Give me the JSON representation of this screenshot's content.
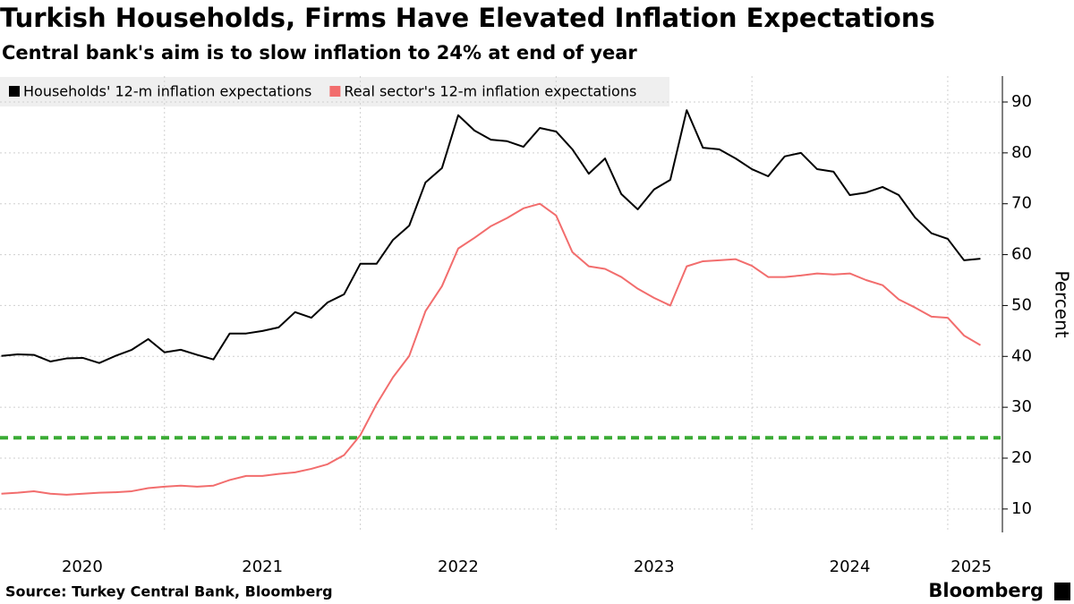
{
  "chart_data": {
    "type": "line",
    "title": "Turkish Households, Firms Have Elevated Inflation Expectations",
    "subtitle": "Central bank's aim is to slow inflation to 24% at end of year",
    "y_label": "Percent",
    "source": "Source: Turkey Central Bank, Bloomberg",
    "logo": "Bloomberg",
    "x": [
      2020.167,
      2020.25,
      2020.333,
      2020.417,
      2020.5,
      2020.583,
      2020.667,
      2020.75,
      2020.833,
      2020.917,
      2021.0,
      2021.083,
      2021.167,
      2021.25,
      2021.333,
      2021.417,
      2021.5,
      2021.583,
      2021.667,
      2021.75,
      2021.833,
      2021.917,
      2022.0,
      2022.083,
      2022.167,
      2022.25,
      2022.333,
      2022.417,
      2022.5,
      2022.583,
      2022.667,
      2022.75,
      2022.833,
      2022.917,
      2023.0,
      2023.083,
      2023.167,
      2023.25,
      2023.333,
      2023.417,
      2023.5,
      2023.583,
      2023.667,
      2023.75,
      2023.833,
      2023.917,
      2024.0,
      2024.083,
      2024.167,
      2024.25,
      2024.333,
      2024.417,
      2024.5,
      2024.583,
      2024.667,
      2024.75,
      2024.833,
      2024.917,
      2025.0,
      2025.083,
      2025.167
    ],
    "series": [
      {
        "name": "Households' 12-m inflation expectations",
        "color": "#000000",
        "values": [
          40.1,
          40.4,
          40.3,
          39.0,
          39.6,
          39.7,
          38.7,
          40.1,
          41.3,
          43.4,
          40.8,
          41.3,
          40.3,
          39.4,
          44.5,
          44.5,
          45.0,
          45.7,
          48.7,
          47.6,
          50.6,
          52.2,
          58.2,
          58.2,
          62.9,
          65.7,
          74.2,
          77.0,
          87.4,
          84.4,
          82.6,
          82.3,
          81.2,
          84.9,
          84.2,
          80.7,
          75.9,
          78.9,
          71.9,
          68.9,
          72.8,
          74.7,
          88.4,
          81.0,
          80.7,
          78.9,
          76.8,
          75.4,
          79.3,
          80.0,
          76.8,
          76.3,
          71.7,
          72.2,
          73.3,
          71.7,
          67.3,
          64.2,
          63.1,
          58.9,
          59.2
        ]
      },
      {
        "name": "Real sector's 12-m inflation expectations",
        "color": "#f26d6d",
        "values": [
          13.0,
          13.2,
          13.5,
          13.0,
          12.8,
          13.0,
          13.2,
          13.3,
          13.5,
          14.1,
          14.4,
          14.6,
          14.4,
          14.6,
          15.7,
          16.5,
          16.5,
          16.9,
          17.2,
          17.9,
          18.8,
          20.6,
          24.5,
          30.6,
          35.9,
          40.1,
          48.9,
          53.8,
          61.2,
          63.3,
          65.6,
          67.2,
          69.1,
          70.0,
          67.7,
          60.5,
          57.7,
          57.2,
          55.6,
          53.3,
          51.5,
          50.0,
          57.7,
          58.7,
          58.9,
          59.1,
          57.8,
          55.6,
          55.6,
          55.9,
          56.3,
          56.1,
          56.3,
          55.0,
          54.0,
          51.2,
          49.6,
          47.8,
          47.6,
          44.1,
          42.2
        ]
      }
    ],
    "reference_line": {
      "value": 24,
      "color": "#3aab34"
    },
    "xlim": [
      2020.16,
      2025.27
    ],
    "xticks": [
      {
        "value": 2020.58,
        "label": "2020"
      },
      {
        "value": 2021.5,
        "label": "2021"
      },
      {
        "value": 2022.5,
        "label": "2022"
      },
      {
        "value": 2023.5,
        "label": "2023"
      },
      {
        "value": 2024.5,
        "label": "2024"
      },
      {
        "value": 2025.12,
        "label": "2025"
      }
    ],
    "xgrid": [
      2021,
      2022,
      2023,
      2024,
      2025
    ],
    "ylim": [
      5.4,
      95.1
    ],
    "yticks": [
      10,
      20,
      30,
      40,
      50,
      60,
      70,
      80,
      90
    ],
    "grid": true,
    "legend": "top-left"
  }
}
